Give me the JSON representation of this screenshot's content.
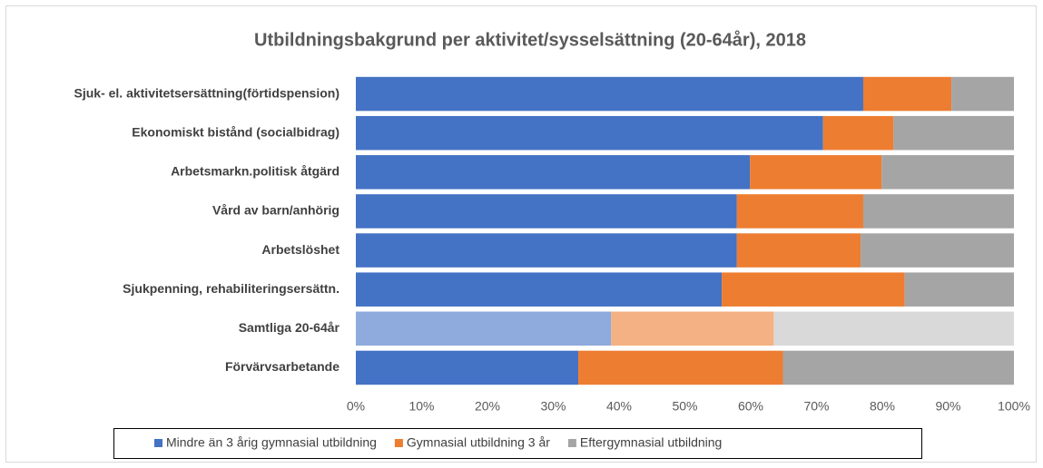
{
  "chart_data": {
    "type": "stacked_barh",
    "title": "Utbildningsbakgrund per aktivitet/sysselsättning (20-64år), 2018",
    "categories": [
      "Sjuk- el. aktivitetsersättning(förtidspension)",
      "Ekonomiskt bistånd (socialbidrag)",
      "Arbetsmarkn.politisk åtgärd",
      "Vård av barn/anhörig",
      "Arbetslöshet",
      "Sjukpenning, rehabiliteringsersättn.",
      "Samtliga 20-64år",
      "Förvärvsarbetande"
    ],
    "series": [
      {
        "name": "Mindre än 3 årig gymnasial utbildning",
        "color": "#4472c4",
        "colors": [
          "#4472c4",
          "#4472c4",
          "#4472c4",
          "#4472c4",
          "#4472c4",
          "#4472c4",
          "#8faadc",
          "#4472c4"
        ],
        "values": [
          77.1,
          71.0,
          59.9,
          57.9,
          57.9,
          55.6,
          38.8,
          33.8
        ]
      },
      {
        "name": "Gymnasial utbildning 3 år",
        "color": "#ed7d31",
        "colors": [
          "#ed7d31",
          "#ed7d31",
          "#ed7d31",
          "#ed7d31",
          "#ed7d31",
          "#ed7d31",
          "#f4b183",
          "#ed7d31"
        ],
        "values": [
          13.4,
          10.7,
          20.0,
          19.2,
          18.8,
          27.8,
          24.7,
          31.1
        ]
      },
      {
        "name": "Eftergymnasial utbildning",
        "color": "#a5a5a5",
        "colors": [
          "#a5a5a5",
          "#a5a5a5",
          "#a5a5a5",
          "#a5a5a5",
          "#a5a5a5",
          "#a5a5a5",
          "#d9d9d9",
          "#a5a5a5"
        ],
        "values": [
          9.5,
          18.3,
          20.1,
          22.9,
          23.3,
          16.6,
          36.5,
          35.1
        ]
      }
    ],
    "xlim": [
      0,
      100
    ],
    "xticks": [
      {
        "value": 0,
        "label": "0%"
      },
      {
        "value": 10,
        "label": "10%"
      },
      {
        "value": 20,
        "label": "20%"
      },
      {
        "value": 30,
        "label": "30%"
      },
      {
        "value": 40,
        "label": "40%"
      },
      {
        "value": 50,
        "label": "50%"
      },
      {
        "value": 60,
        "label": "60%"
      },
      {
        "value": 70,
        "label": "70%"
      },
      {
        "value": 80,
        "label": "80%"
      },
      {
        "value": 90,
        "label": "90%"
      },
      {
        "value": 100,
        "label": "100%"
      }
    ],
    "legend": "bottom"
  }
}
